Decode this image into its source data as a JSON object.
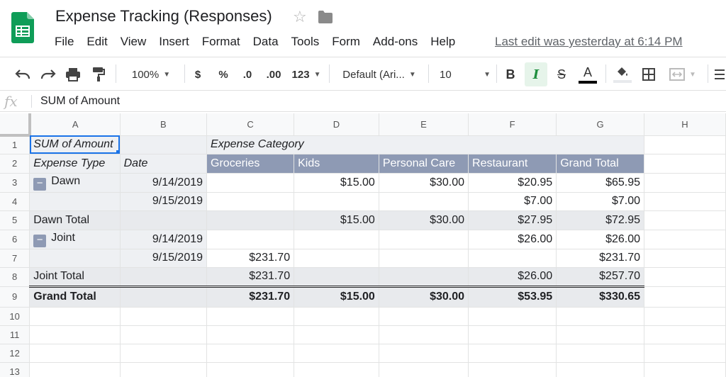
{
  "app": {
    "title": "Expense Tracking (Responses)",
    "last_edit": "Last edit was yesterday at 6:14 PM",
    "menu": [
      "File",
      "Edit",
      "View",
      "Insert",
      "Format",
      "Data",
      "Tools",
      "Form",
      "Add-ons",
      "Help"
    ]
  },
  "toolbar": {
    "zoom": "100%",
    "currency": "$",
    "percent": "%",
    "decrease_decimal": ".0",
    "increase_decimal": ".00",
    "more_formats": "123",
    "font": "Default (Ari...",
    "font_size": "10",
    "bold": "B",
    "italic": "I",
    "strikethrough": "S",
    "text_color": "A",
    "accent_color": "#1e8e3e"
  },
  "formula_bar": {
    "fx": "fx",
    "value": "SUM of Amount"
  },
  "grid": {
    "columns": [
      "A",
      "B",
      "C",
      "D",
      "E",
      "F",
      "G",
      "H"
    ],
    "rows": [
      "1",
      "2",
      "3",
      "4",
      "5",
      "6",
      "7",
      "8",
      "9",
      "10",
      "11",
      "12",
      "13"
    ],
    "pivot": {
      "corner_label": "SUM of Amount",
      "column_group_label": "Expense Category",
      "row_header_1": "Expense Type",
      "row_header_2": "Date",
      "categories": [
        "Groceries",
        "Kids",
        "Personal Care",
        "Restaurant",
        "Grand Total"
      ],
      "groups": [
        {
          "name": "Dawn",
          "collapse_symbol": "−",
          "rows": [
            {
              "date": "9/14/2019",
              "values": [
                "",
                "$15.00",
                "$30.00",
                "$20.95",
                "$65.95"
              ]
            },
            {
              "date": "9/15/2019",
              "values": [
                "",
                "",
                "",
                "$7.00",
                "$7.00"
              ]
            }
          ],
          "total_label": "Dawn Total",
          "totals": [
            "",
            "$15.00",
            "$30.00",
            "$27.95",
            "$72.95"
          ]
        },
        {
          "name": "Joint",
          "collapse_symbol": "−",
          "rows": [
            {
              "date": "9/14/2019",
              "values": [
                "",
                "",
                "",
                "$26.00",
                "$26.00"
              ]
            },
            {
              "date": "9/15/2019",
              "values": [
                "$231.70",
                "",
                "",
                "",
                "$231.70"
              ]
            }
          ],
          "total_label": "Joint Total",
          "totals": [
            "$231.70",
            "",
            "",
            "$26.00",
            "$257.70"
          ]
        }
      ],
      "grand_total_label": "Grand Total",
      "grand_totals": [
        "$231.70",
        "$15.00",
        "$30.00",
        "$53.95",
        "$330.65"
      ]
    }
  },
  "colors": {
    "header_fill": "#8e9ab4",
    "total_fill": "#e8eaed",
    "selection": "#1a73e8"
  }
}
